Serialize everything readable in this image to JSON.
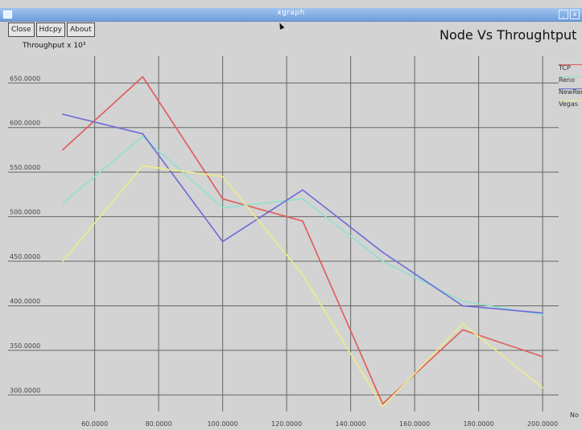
{
  "window": {
    "title": "xgraph",
    "controls": [
      "_",
      "x"
    ]
  },
  "toolbar": {
    "buttons": [
      "Close",
      "Hdcpy",
      "About"
    ]
  },
  "y_unit_label": "Throughput x 10³",
  "x_axis_name": "No",
  "colors": {
    "background": "#d3d3d3",
    "grid": "#666666",
    "titlebar": "#7fa9e2"
  },
  "chart_data": {
    "type": "line",
    "title": "Node Vs Throughtput",
    "xlabel": "",
    "ylabel": "",
    "xlim": [
      45,
      205
    ],
    "ylim": [
      285,
      680
    ],
    "x_ticks": [
      60,
      80,
      100,
      120,
      140,
      160,
      180,
      200
    ],
    "x_tick_labels": [
      "60.0000",
      "80.0000",
      "100.0000",
      "120.0000",
      "140.0000",
      "160.0000",
      "180.0000",
      "200.0000"
    ],
    "y_ticks": [
      300,
      350,
      400,
      450,
      500,
      550,
      600,
      650
    ],
    "y_tick_labels": [
      "300.0000",
      "350.0000",
      "400.0000",
      "450.0000",
      "500.0000",
      "550.0000",
      "600.0000",
      "650.0000"
    ],
    "grid": true,
    "legend_position": "right",
    "x": [
      50,
      75,
      100,
      125,
      150,
      175,
      200
    ],
    "series": [
      {
        "name": "TCP",
        "color": "#e05a5a",
        "values": [
          575,
          657,
          520,
          495,
          290,
          373,
          343
        ]
      },
      {
        "name": "Reno",
        "color": "#8fe0d0",
        "values": [
          515,
          590,
          510,
          520,
          450,
          405,
          390
        ]
      },
      {
        "name": "NewReno",
        "color": "#6a6ad8",
        "values": [
          615,
          593,
          472,
          530,
          460,
          400,
          392
        ]
      },
      {
        "name": "Vegas",
        "color": "#ecec8a",
        "values": [
          450,
          557,
          545,
          435,
          287,
          380,
          308
        ]
      }
    ]
  }
}
